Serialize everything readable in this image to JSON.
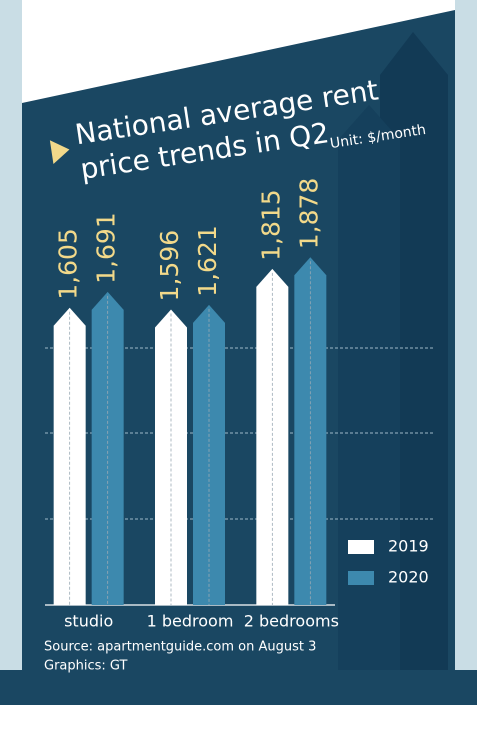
{
  "chart_data": {
    "type": "bar",
    "title": [
      "National average rent",
      "price trends in Q2"
    ],
    "unit": "Unit: $/month",
    "categories": [
      "studio",
      "1 bedroom",
      "2 bedrooms"
    ],
    "series": [
      {
        "name": "2019",
        "color": "#ffffff",
        "values": [
          1605,
          1596,
          1815
        ],
        "value_labels": [
          "1,605",
          "1,596",
          "1,815"
        ]
      },
      {
        "name": "2020",
        "color": "#3d89ae",
        "values": [
          1691,
          1621,
          1878
        ],
        "value_labels": [
          "1,691",
          "1,621",
          "1,878"
        ]
      }
    ],
    "ylim": [
      0,
      2700
    ],
    "source": [
      "Source: apartmentguide.com on August 3",
      "Graphics: GT"
    ]
  }
}
